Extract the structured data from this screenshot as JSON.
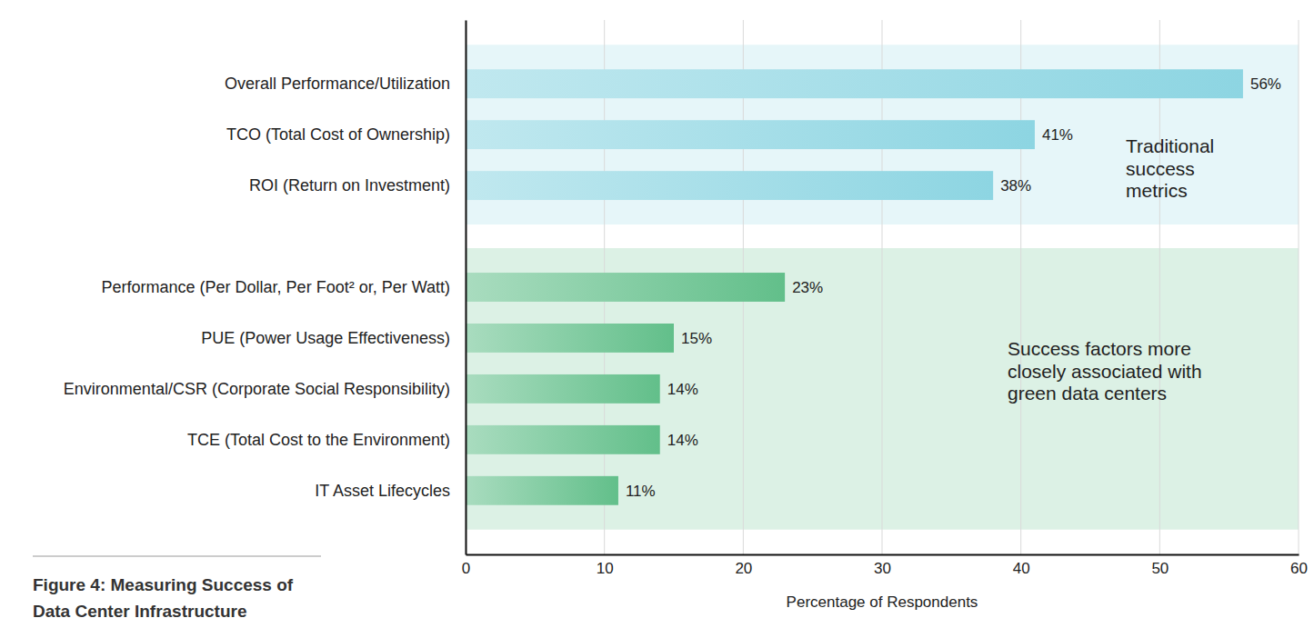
{
  "chart_data": {
    "type": "bar",
    "orientation": "horizontal",
    "title": "Figure 4: Measuring Success of Data Center Infrastructure",
    "x_label": "Percentage of Respondents",
    "categories": [
      "Overall Performance/Utilization",
      "TCO (Total Cost of Ownership)",
      "ROI (Return on Investment)",
      null,
      "Performance (Per Dollar, Per Foot² or, Per Watt)",
      "PUE (Power Usage Effectiveness)",
      "Environmental/CSR (Corporate Social Responsibility)",
      "TCE (Total Cost to the Environment)",
      "IT Asset Lifecycles"
    ],
    "series": [
      {
        "name": "Traditional success metrics",
        "color": "#8dd5e2",
        "values": [
          56,
          41,
          38,
          null,
          null,
          null,
          null,
          null,
          null
        ],
        "value_labels": [
          "56%",
          "41%",
          "38%",
          null,
          null,
          null,
          null,
          null,
          null
        ]
      },
      {
        "name": "Success factors more closely associated with green data centers",
        "color": "#62bf8a",
        "values": [
          null,
          null,
          null,
          null,
          23,
          15,
          14,
          14,
          11
        ],
        "value_labels": [
          null,
          null,
          null,
          null,
          "23%",
          "15%",
          "14%",
          "14%",
          "11%"
        ]
      }
    ],
    "xlim": [
      0,
      60
    ],
    "xticks": [
      0,
      10,
      20,
      30,
      40,
      50,
      60
    ],
    "grid": true,
    "data_labels": true
  }
}
